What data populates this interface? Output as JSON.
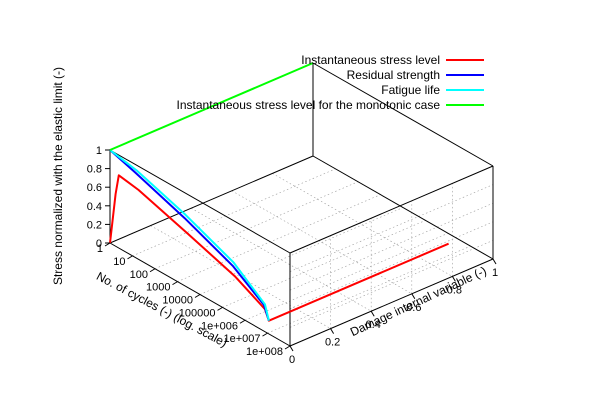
{
  "chart_data": {
    "type": "line",
    "projection": "3d",
    "xlabel": "No. of cycles (-) (log. scale)",
    "ylabel": "Damage internal variable (-)",
    "zlabel": "Stress normalized with the elastic limit (-)",
    "x_scale": "log",
    "xlim": [
      1,
      100000000
    ],
    "ylim": [
      0,
      1
    ],
    "zlim": [
      0,
      1
    ],
    "x_ticks": [
      "1",
      "10",
      "100",
      "1000",
      "10000",
      "100000",
      "1e+006",
      "1e+007",
      "1e+008"
    ],
    "y_ticks": [
      "0",
      "0.2",
      "0.4",
      "0.6",
      "0.8",
      "1"
    ],
    "z_ticks": [
      "0",
      "0.2",
      "0.4",
      "0.6",
      "0.8",
      "1"
    ],
    "grid": true,
    "legend_position": "top-right",
    "series": [
      {
        "name": "Instantaneous stress level",
        "color": "#ff0000",
        "points": [
          [
            1,
            0,
            0
          ],
          [
            1.6,
            0.005,
            0.55
          ],
          [
            2,
            0.01,
            0.76
          ],
          [
            10,
            0.03,
            0.68
          ],
          [
            1000,
            0.05,
            0.47
          ],
          [
            100000,
            0.06,
            0.28
          ],
          [
            2000000,
            0.065,
            0.1
          ],
          [
            3000000,
            0.065,
            0.0
          ],
          [
            3000000,
            0.45,
            0.0
          ],
          [
            3000000,
            0.95,
            0.0
          ]
        ]
      },
      {
        "name": "Residual strength",
        "color": "#0000ff",
        "points": [
          [
            1,
            0,
            1
          ],
          [
            10,
            0.015,
            0.88
          ],
          [
            1000,
            0.035,
            0.65
          ],
          [
            100000,
            0.05,
            0.4
          ],
          [
            2000000,
            0.06,
            0.15
          ],
          [
            3000000,
            0.065,
            0.0
          ]
        ]
      },
      {
        "name": "Fatigue life",
        "color": "#00ffff",
        "points": [
          [
            1,
            0,
            1
          ],
          [
            10,
            0.02,
            0.9
          ],
          [
            1000,
            0.04,
            0.68
          ],
          [
            100000,
            0.055,
            0.43
          ],
          [
            2000000,
            0.065,
            0.15
          ],
          [
            3000000,
            0.065,
            0.0
          ]
        ]
      },
      {
        "name": "Instantaneous stress level for the monotonic case",
        "color": "#00ff00",
        "points": [
          [
            1,
            0,
            1
          ],
          [
            1,
            0.5,
            1
          ],
          [
            1,
            1,
            1
          ]
        ]
      }
    ]
  }
}
